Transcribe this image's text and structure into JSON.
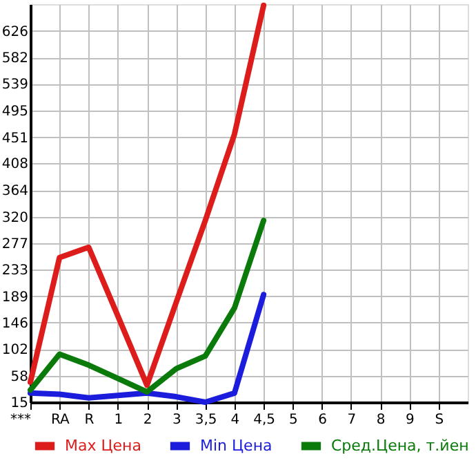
{
  "chart_data": {
    "type": "line",
    "categories": [
      "***",
      "RA",
      "R",
      "1",
      "2",
      "3",
      "3,5",
      "4",
      "4,5",
      "5",
      "6",
      "7",
      "8",
      "9",
      "S"
    ],
    "series": [
      {
        "name": "Max Цена",
        "color": "#dd1c1c",
        "values": [
          48,
          253,
          270,
          157,
          43,
          179,
          314,
          456,
          668,
          null,
          null,
          null,
          null,
          null,
          null
        ]
      },
      {
        "name": "Min Цена",
        "color": "#1c1cdd",
        "values": [
          30,
          28,
          22,
          26,
          30,
          24,
          15,
          30,
          192,
          null,
          null,
          null,
          null,
          null,
          null
        ]
      },
      {
        "name": "Сред.Цена, т.йен",
        "color": "#0a7a0a",
        "values": [
          35,
          94,
          76,
          54,
          32,
          70,
          91,
          170,
          314,
          null,
          null,
          null,
          null,
          null,
          null
        ]
      }
    ],
    "ylim": [
      15,
      670
    ],
    "yticks": [
      15,
      58,
      102,
      146,
      189,
      233,
      277,
      320,
      364,
      408,
      451,
      495,
      539,
      582,
      626
    ],
    "grid": true,
    "legend": "bottom",
    "marker": "none",
    "line_style": "solid"
  }
}
